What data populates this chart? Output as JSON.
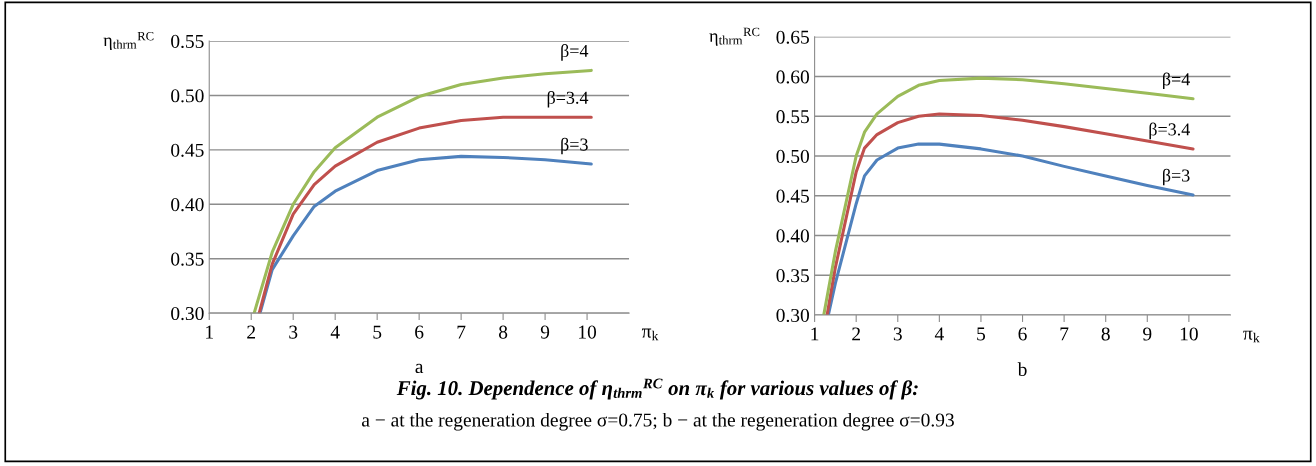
{
  "chart_data": [
    {
      "type": "line",
      "title": "a",
      "xlabel": "π$_{k}$",
      "ylabel": "η$_{thrm}$$^{RC}$",
      "xlim": [
        1,
        11
      ],
      "xticks": [
        1,
        2,
        3,
        4,
        5,
        6,
        7,
        8,
        9,
        10
      ],
      "ylim": [
        0.3,
        0.55
      ],
      "yticks": [
        {
          "value": 0.3,
          "label": "0.30"
        },
        {
          "value": 0.35,
          "label": "0.35"
        },
        {
          "value": 0.4,
          "label": "0.40"
        },
        {
          "value": 0.45,
          "label": "0.45"
        },
        {
          "value": 0.5,
          "label": "0.50"
        },
        {
          "value": 0.55,
          "label": "0.55"
        }
      ],
      "grid": "y",
      "legend": false,
      "series": [
        {
          "name": "β=3",
          "color": "#4f81bd",
          "x": [
            2.21,
            2.5,
            3,
            3.5,
            4,
            5,
            6,
            7,
            8,
            9,
            10.1
          ],
          "values": [
            0.3,
            0.34,
            0.371,
            0.398,
            0.412,
            0.431,
            0.441,
            0.444,
            0.443,
            0.441,
            0.437
          ]
        },
        {
          "name": "β=3.4",
          "color": "#c0504d",
          "x": [
            2.19,
            2.5,
            3,
            3.5,
            4,
            5,
            6,
            7,
            8,
            9,
            10.1
          ],
          "values": [
            0.3,
            0.345,
            0.391,
            0.418,
            0.435,
            0.457,
            0.47,
            0.477,
            0.48,
            0.48,
            0.48
          ]
        },
        {
          "name": "β=4",
          "color": "#9bbb59",
          "x": [
            2.07,
            2.5,
            3,
            3.5,
            4,
            5,
            6,
            7,
            8,
            9,
            10.1
          ],
          "values": [
            0.3,
            0.356,
            0.4,
            0.43,
            0.452,
            0.48,
            0.499,
            0.51,
            0.516,
            0.52,
            0.523
          ]
        }
      ],
      "annotations": [
        "Fig. 10. Dependence of η$_{thrm}$$^{RC}$ on π$_{k}$ for various values of β:",
        "a − at the regeneration degree σ=0.75; b − at the regeneration degree σ=0.93"
      ]
    },
    {
      "type": "line",
      "title": "b",
      "xlabel": "π$_{k}$",
      "ylabel": "η$_{thrm}$$^{RC}$",
      "xlim": [
        1,
        11
      ],
      "xticks": [
        1,
        2,
        3,
        4,
        5,
        6,
        7,
        8,
        9,
        10
      ],
      "ylim": [
        0.3,
        0.65
      ],
      "yticks": [
        {
          "value": 0.3,
          "label": "0.30"
        },
        {
          "value": 0.35,
          "label": "0.35"
        },
        {
          "value": 0.4,
          "label": "0.40"
        },
        {
          "value": 0.45,
          "label": "0.45"
        },
        {
          "value": 0.5,
          "label": "0.50"
        },
        {
          "value": 0.55,
          "label": "0.55"
        },
        {
          "value": 0.6,
          "label": "0.60"
        },
        {
          "value": 0.65,
          "label": "0.65"
        }
      ],
      "grid": "y",
      "legend": false,
      "series": [
        {
          "name": "β=3",
          "color": "#4f81bd",
          "x": [
            1.33,
            1.5,
            2,
            2.2,
            2.5,
            3,
            3.5,
            4,
            5,
            6,
            7,
            8,
            9,
            10.1
          ],
          "values": [
            0.3,
            0.34,
            0.44,
            0.475,
            0.495,
            0.51,
            0.515,
            0.515,
            0.509,
            0.5,
            0.487,
            0.475,
            0.463,
            0.451
          ]
        },
        {
          "name": "β=3.4",
          "color": "#c0504d",
          "x": [
            1.3,
            1.5,
            2,
            2.2,
            2.5,
            3,
            3.5,
            4,
            5,
            6,
            7,
            8,
            9,
            10.1
          ],
          "values": [
            0.3,
            0.36,
            0.48,
            0.51,
            0.527,
            0.542,
            0.55,
            0.553,
            0.551,
            0.545,
            0.537,
            0.528,
            0.519,
            0.509
          ]
        },
        {
          "name": "β=4",
          "color": "#9bbb59",
          "x": [
            1.22,
            1.5,
            2,
            2.2,
            2.5,
            3,
            3.5,
            4,
            5,
            6,
            7,
            8,
            9,
            10.1
          ],
          "values": [
            0.3,
            0.38,
            0.5,
            0.53,
            0.553,
            0.575,
            0.589,
            0.595,
            0.598,
            0.596,
            0.591,
            0.585,
            0.579,
            0.572
          ]
        }
      ]
    }
  ]
}
